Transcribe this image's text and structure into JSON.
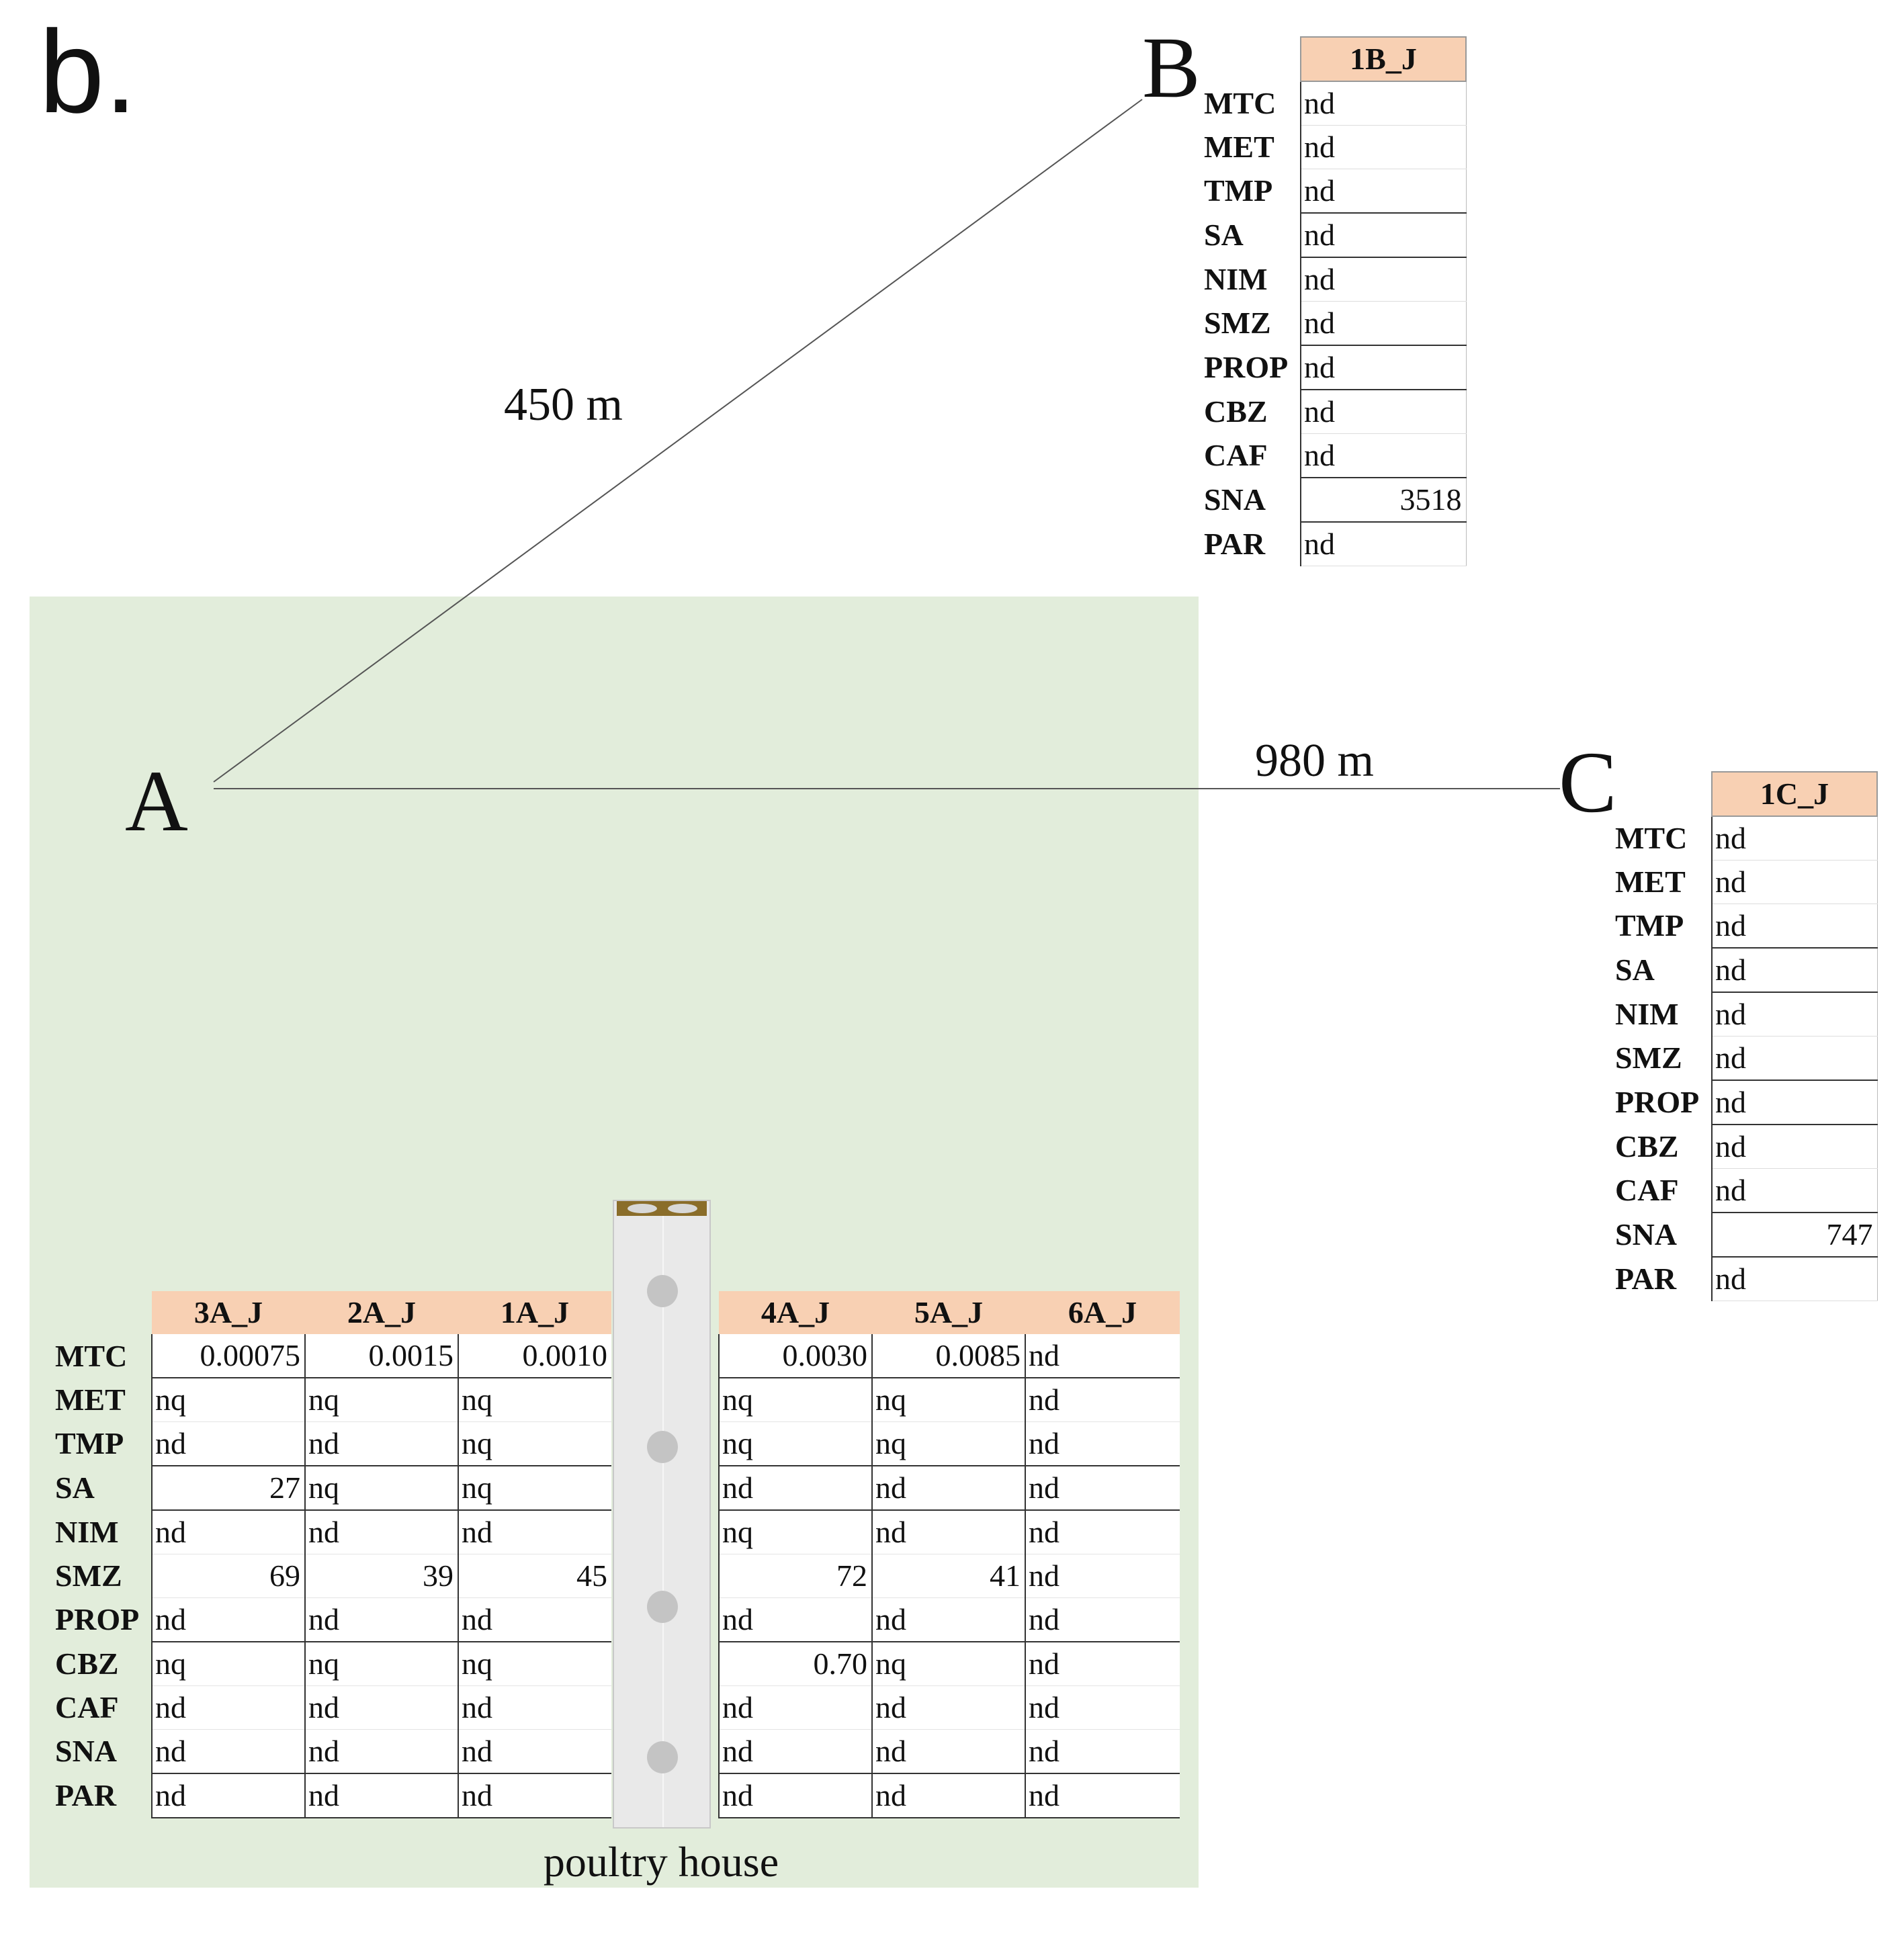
{
  "panel_label": "b.",
  "colors": {
    "field_area": "#e2eddb",
    "table_header": "#f8d0b3",
    "roof": "#8a6d2a"
  },
  "icons": [
    "poultry-house-icon"
  ],
  "sites": {
    "A": {
      "letter": "A"
    },
    "B": {
      "letter": "B",
      "distance_label": "450 m"
    },
    "C": {
      "letter": "C",
      "distance_label": "980 m"
    }
  },
  "compounds": [
    "MTC",
    "MET",
    "TMP",
    "SA",
    "NIM",
    "SMZ",
    "PROP",
    "CBZ",
    "CAF",
    "SNA",
    "PAR"
  ],
  "tables": {
    "B": {
      "sample": "1B_J",
      "values": [
        "nd",
        "nd",
        "nd",
        "nd",
        "nd",
        "nd",
        "nd",
        "nd",
        "nd",
        "3518",
        "nd"
      ]
    },
    "C": {
      "sample": "1C_J",
      "values": [
        "nd",
        "nd",
        "nd",
        "nd",
        "nd",
        "nd",
        "nd",
        "nd",
        "nd",
        "747",
        "nd"
      ]
    },
    "A": {
      "samples": [
        "3A_J",
        "2A_J",
        "1A_J",
        "4A_J",
        "5A_J",
        "6A_J"
      ],
      "rows": [
        [
          "0.00075",
          "0.0015",
          "0.0010",
          "0.0030",
          "0.0085",
          "nd"
        ],
        [
          "nq",
          "nq",
          "nq",
          "nq",
          "nq",
          "nd"
        ],
        [
          "nd",
          "nd",
          "nq",
          "nq",
          "nq",
          "nd"
        ],
        [
          "27",
          "nq",
          "nq",
          "nd",
          "nd",
          "nd"
        ],
        [
          "nd",
          "nd",
          "nd",
          "nq",
          "nd",
          "nd"
        ],
        [
          "69",
          "39",
          "45",
          "72",
          "41",
          "nd"
        ],
        [
          "nd",
          "nd",
          "nd",
          "nd",
          "nd",
          "nd"
        ],
        [
          "nq",
          "nq",
          "nq",
          "0.70",
          "nq",
          "nd"
        ],
        [
          "nd",
          "nd",
          "nd",
          "nd",
          "nd",
          "nd"
        ],
        [
          "nd",
          "nd",
          "nd",
          "nd",
          "nd",
          "nd"
        ],
        [
          "nd",
          "nd",
          "nd",
          "nd",
          "nd",
          "nd"
        ]
      ]
    }
  },
  "poultry_house_label": "poultry house"
}
